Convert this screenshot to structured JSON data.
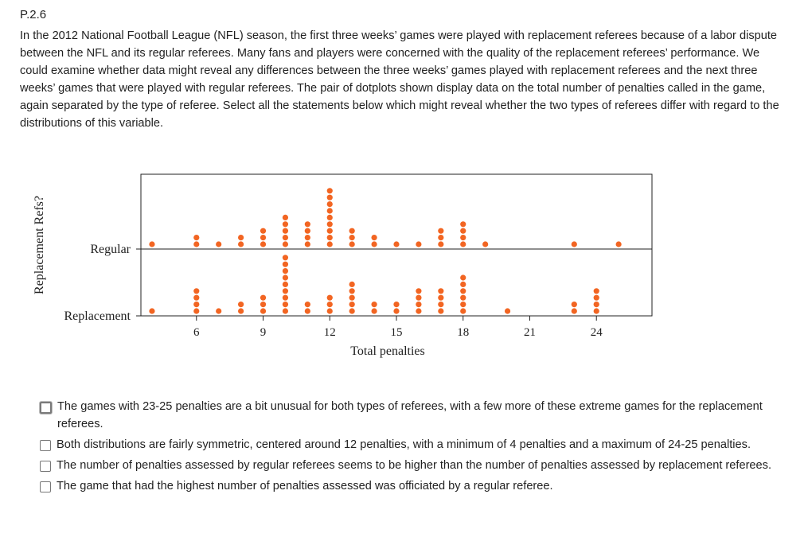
{
  "problem": {
    "id": "P.2.6",
    "text": "In the 2012 National Football League (NFL) season, the first three weeks’ games were played with replacement referees because of a labor dispute between the NFL and its regular referees. Many fans and players were concerned with the quality of the replacement referees’ performance. We could examine whether data might reveal any differences between the three weeks’ games played with replacement referees and the next three weeks’ games that were played with regular referees. The pair of dotplots shown display data on the total number of penalties called in the game, again separated by the type of referee. Select all the statements below which might reveal whether the two types of referees differ with regard to the distributions of this variable."
  },
  "chart_data": {
    "type": "scatter",
    "subtype": "dotplot",
    "xlabel": "Total penalties",
    "ylabel": "Replacement Refs?",
    "xlim": [
      3.5,
      26.5
    ],
    "xticks": [
      6,
      9,
      12,
      15,
      18,
      21,
      24
    ],
    "categories": [
      "Regular",
      "Replacement"
    ],
    "dot_color": "#f26522",
    "series": [
      {
        "name": "Regular",
        "x": [
          4,
          6,
          7,
          8,
          9,
          10,
          11,
          12,
          13,
          14,
          15,
          16,
          17,
          18,
          19,
          23,
          25
        ],
        "counts": [
          1,
          2,
          1,
          2,
          3,
          5,
          4,
          9,
          3,
          2,
          1,
          1,
          3,
          4,
          1,
          1,
          1
        ]
      },
      {
        "name": "Replacement",
        "x": [
          4,
          6,
          7,
          8,
          9,
          10,
          11,
          12,
          13,
          14,
          15,
          16,
          17,
          18,
          20,
          23,
          24
        ],
        "counts": [
          1,
          4,
          1,
          2,
          3,
          9,
          2,
          3,
          5,
          2,
          2,
          4,
          4,
          6,
          1,
          2,
          4
        ]
      }
    ]
  },
  "options": [
    {
      "label": "The games with 23-25 penalties are a bit unusual for both types of referees, with a few more of these extreme games for the replacement referees.",
      "checked": false
    },
    {
      "label": "Both distributions are fairly symmetric, centered around 12 penalties, with a minimum of 4 penalties and a maximum of 24-25 penalties.",
      "checked": false
    },
    {
      "label": "The number of penalties assessed by regular referees seems to be higher than the number of penalties assessed by replacement referees.",
      "checked": false
    },
    {
      "label": "The game that had the highest number of penalties assessed was officiated by a regular referee.",
      "checked": false
    }
  ]
}
